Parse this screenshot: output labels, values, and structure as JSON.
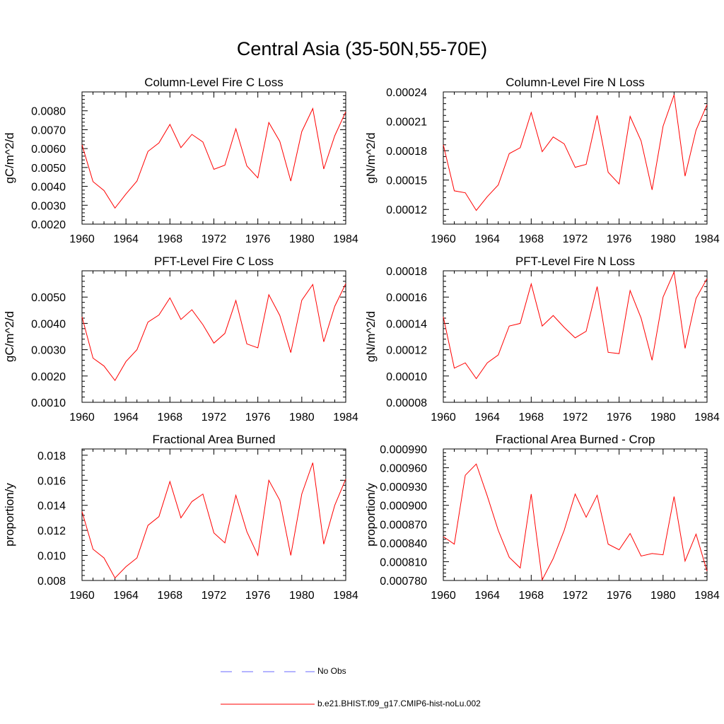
{
  "title": "Central Asia (35-50N,55-70E)",
  "colors": {
    "model_line": "#ff0000",
    "obs_line": "#6a6aff",
    "axis": "#000000"
  },
  "legend": [
    {
      "label": "No Obs",
      "style": "dashed",
      "color": "#6a6aff"
    },
    {
      "label": "b.e21.BHIST.f09_g17.CMIP6-hist-noLu.002",
      "style": "solid",
      "color": "#ff0000"
    }
  ],
  "chart_data": [
    {
      "type": "line",
      "title": "Column-Level Fire C Loss",
      "ylabel": "gC/m^2/d",
      "xlim": [
        1960,
        1984
      ],
      "ylim": [
        0.002,
        0.009
      ],
      "xticks": [
        "1960",
        "1964",
        "1968",
        "1972",
        "1976",
        "1980",
        "1984"
      ],
      "yticks": [
        "0.0020",
        "0.0030",
        "0.0040",
        "0.0050",
        "0.0060",
        "0.0070",
        "0.0080"
      ],
      "x": [
        1960,
        1961,
        1962,
        1963,
        1964,
        1965,
        1966,
        1967,
        1968,
        1969,
        1970,
        1971,
        1972,
        1973,
        1974,
        1975,
        1976,
        1977,
        1978,
        1979,
        1980,
        1981,
        1982,
        1983,
        1984
      ],
      "series": [
        {
          "name": "b.e21.BHIST.f09_g17.CMIP6-hist-noLu.002",
          "values": [
            0.0062,
            0.00425,
            0.00378,
            0.00285,
            0.0036,
            0.00428,
            0.00585,
            0.0063,
            0.00728,
            0.00605,
            0.00675,
            0.00635,
            0.0049,
            0.00512,
            0.00705,
            0.00508,
            0.00445,
            0.00738,
            0.00638,
            0.00428,
            0.0069,
            0.00812,
            0.00492,
            0.00668,
            0.00795
          ]
        }
      ]
    },
    {
      "type": "line",
      "title": "Column-Level Fire N Loss",
      "ylabel": "gN/m^2/d",
      "xlim": [
        1960,
        1984
      ],
      "ylim": [
        0.000105,
        0.00024
      ],
      "xticks": [
        "1960",
        "1964",
        "1968",
        "1972",
        "1976",
        "1980",
        "1984"
      ],
      "yticks": [
        "0.00012",
        "0.00015",
        "0.00018",
        "0.00021",
        "0.00024"
      ],
      "x": [
        1960,
        1961,
        1962,
        1963,
        1964,
        1965,
        1966,
        1967,
        1968,
        1969,
        1970,
        1971,
        1972,
        1973,
        1974,
        1975,
        1976,
        1977,
        1978,
        1979,
        1980,
        1981,
        1982,
        1983,
        1984
      ],
      "series": [
        {
          "name": "b.e21.BHIST.f09_g17.CMIP6-hist-noLu.002",
          "values": [
            0.000186,
            0.000139,
            0.000137,
            0.000119,
            0.000133,
            0.000145,
            0.000177,
            0.000183,
            0.000219,
            0.000179,
            0.000194,
            0.000187,
            0.000163,
            0.000166,
            0.000216,
            0.000158,
            0.000146,
            0.000215,
            0.00019,
            0.00014,
            0.000205,
            0.000237,
            0.000154,
            0.000201,
            0.000227
          ]
        }
      ]
    },
    {
      "type": "line",
      "title": "PFT-Level Fire C Loss",
      "ylabel": "gC/m^2/d",
      "xlim": [
        1960,
        1984
      ],
      "ylim": [
        0.001,
        0.006
      ],
      "xticks": [
        "1960",
        "1964",
        "1968",
        "1972",
        "1976",
        "1980",
        "1984"
      ],
      "yticks": [
        "0.0010",
        "0.0020",
        "0.0030",
        "0.0040",
        "0.0050"
      ],
      "x": [
        1960,
        1961,
        1962,
        1963,
        1964,
        1965,
        1966,
        1967,
        1968,
        1969,
        1970,
        1971,
        1972,
        1973,
        1974,
        1975,
        1976,
        1977,
        1978,
        1979,
        1980,
        1981,
        1982,
        1983,
        1984
      ],
      "series": [
        {
          "name": "b.e21.BHIST.f09_g17.CMIP6-hist-noLu.002",
          "values": [
            0.00425,
            0.00268,
            0.00238,
            0.00183,
            0.00255,
            0.003,
            0.00405,
            0.00432,
            0.00497,
            0.00415,
            0.00452,
            0.00395,
            0.00325,
            0.00362,
            0.00487,
            0.00322,
            0.00307,
            0.00509,
            0.0043,
            0.00289,
            0.00488,
            0.00548,
            0.0033,
            0.00465,
            0.00551
          ]
        }
      ]
    },
    {
      "type": "line",
      "title": "PFT-Level Fire N Loss",
      "ylabel": "gN/m^2/d",
      "xlim": [
        1960,
        1984
      ],
      "ylim": [
        8e-05,
        0.00018
      ],
      "xticks": [
        "1960",
        "1964",
        "1968",
        "1972",
        "1976",
        "1980",
        "1984"
      ],
      "yticks": [
        "0.00008",
        "0.00010",
        "0.00012",
        "0.00014",
        "0.00016",
        "0.00018"
      ],
      "x": [
        1960,
        1961,
        1962,
        1963,
        1964,
        1965,
        1966,
        1967,
        1968,
        1969,
        1970,
        1971,
        1972,
        1973,
        1974,
        1975,
        1976,
        1977,
        1978,
        1979,
        1980,
        1981,
        1982,
        1983,
        1984
      ],
      "series": [
        {
          "name": "b.e21.BHIST.f09_g17.CMIP6-hist-noLu.002",
          "values": [
            0.000145,
            0.000106,
            0.00011,
            9.8e-05,
            0.00011,
            0.000116,
            0.000138,
            0.00014,
            0.00017,
            0.000138,
            0.000146,
            0.000137,
            0.000129,
            0.000134,
            0.000168,
            0.000118,
            0.000117,
            0.000165,
            0.000144,
            0.000112,
            0.00016,
            0.000179,
            0.000121,
            0.000159,
            0.000174
          ]
        }
      ]
    },
    {
      "type": "line",
      "title": "Fractional Area Burned",
      "ylabel": "proportion/y",
      "xlim": [
        1960,
        1984
      ],
      "ylim": [
        0.008,
        0.0185
      ],
      "xticks": [
        "1960",
        "1964",
        "1968",
        "1972",
        "1976",
        "1980",
        "1984"
      ],
      "yticks": [
        "0.008",
        "0.010",
        "0.012",
        "0.014",
        "0.016",
        "0.018"
      ],
      "x": [
        1960,
        1961,
        1962,
        1963,
        1964,
        1965,
        1966,
        1967,
        1968,
        1969,
        1970,
        1971,
        1972,
        1973,
        1974,
        1975,
        1976,
        1977,
        1978,
        1979,
        1980,
        1981,
        1982,
        1983,
        1984
      ],
      "series": [
        {
          "name": "b.e21.BHIST.f09_g17.CMIP6-hist-noLu.002",
          "values": [
            0.0135,
            0.0105,
            0.0098,
            0.0082,
            0.0091,
            0.0098,
            0.0124,
            0.0131,
            0.0159,
            0.013,
            0.0143,
            0.0149,
            0.0118,
            0.011,
            0.0148,
            0.0119,
            0.01,
            0.016,
            0.0144,
            0.01,
            0.0149,
            0.0174,
            0.0109,
            0.014,
            0.0161
          ]
        }
      ]
    },
    {
      "type": "line",
      "title": "Fractional Area Burned - Crop",
      "ylabel": "proportion/y",
      "xlim": [
        1960,
        1984
      ],
      "ylim": [
        0.00078,
        0.00099
      ],
      "xticks": [
        "1960",
        "1964",
        "1968",
        "1972",
        "1976",
        "1980",
        "1984"
      ],
      "yticks": [
        "0.000780",
        "0.000810",
        "0.000840",
        "0.000870",
        "0.000900",
        "0.000930",
        "0.000960",
        "0.000990"
      ],
      "x": [
        1960,
        1961,
        1962,
        1963,
        1964,
        1965,
        1966,
        1967,
        1968,
        1969,
        1970,
        1971,
        1972,
        1973,
        1974,
        1975,
        1976,
        1977,
        1978,
        1979,
        1980,
        1981,
        1982,
        1983,
        1984
      ],
      "series": [
        {
          "name": "b.e21.BHIST.f09_g17.CMIP6-hist-noLu.002",
          "values": [
            0.00085,
            0.000838,
            0.000948,
            0.000966,
            0.000915,
            0.00086,
            0.000817,
            0.0008,
            0.000918,
            0.000781,
            0.000815,
            0.00086,
            0.000918,
            0.000881,
            0.000916,
            0.000838,
            0.000829,
            0.000855,
            0.000819,
            0.000823,
            0.000821,
            0.000914,
            0.000811,
            0.000854,
            0.000795
          ]
        }
      ]
    }
  ]
}
